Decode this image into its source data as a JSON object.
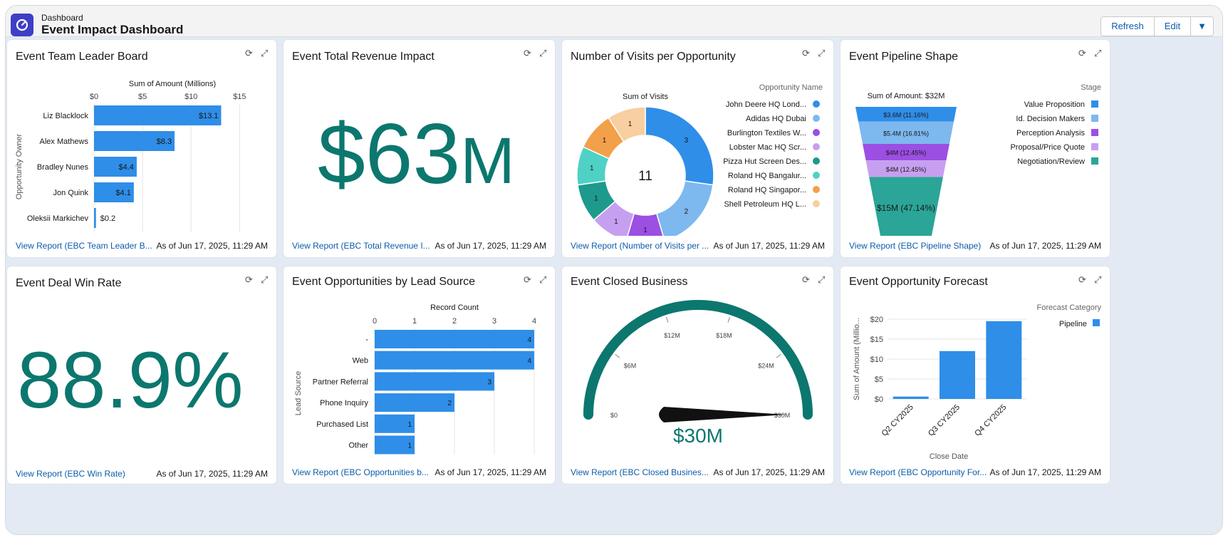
{
  "header": {
    "subtitle": "Dashboard",
    "title": "Event Impact Dashboard",
    "buttons": {
      "refresh": "Refresh",
      "edit": "Edit"
    }
  },
  "colors": {
    "bar_blue": "#2f8ee8",
    "metric_teal": "#0c776e",
    "link_blue": "#0b5cab"
  },
  "cards": {
    "leader": {
      "title": "Event Team Leader Board",
      "link": "View Report (EBC Team Leader B...",
      "asof": "As of Jun 17, 2025, 11:29 AM"
    },
    "revenue": {
      "title": "Event Total Revenue Impact",
      "metric_value": "$63",
      "metric_unit": "M",
      "link": "View Report (EBC Total Revenue I...",
      "asof": "As of Jun 17, 2025, 11:29 AM"
    },
    "visits": {
      "title": "Number of Visits per Opportunity",
      "link": "View Report (Number of Visits per ...",
      "asof": "As of Jun 17, 2025, 11:29 AM"
    },
    "pipeline": {
      "title": "Event Pipeline Shape",
      "link": "View Report (EBC Pipeline Shape)",
      "asof": "As of Jun 17, 2025, 11:29 AM"
    },
    "winrate": {
      "title": "Event Deal Win Rate",
      "metric_value": "88.9%",
      "link": "View Report (EBC Win Rate)",
      "asof": "As of Jun 17, 2025, 11:29 AM"
    },
    "leadsource": {
      "title": "Event Opportunities by Lead Source",
      "link": "View Report (EBC Opportunities b...",
      "asof": "As of Jun 17, 2025, 11:29 AM"
    },
    "closed": {
      "title": "Event Closed Business",
      "link": "View Report (EBC Closed Busines...",
      "asof": "As of Jun 17, 2025, 11:29 AM"
    },
    "forecast": {
      "title": "Event Opportunity Forecast",
      "link": "View Report (EBC Opportunity For...",
      "asof": "As of Jun 17, 2025, 11:29 AM"
    }
  },
  "chart_data": [
    {
      "id": "leader",
      "type": "bar",
      "orientation": "horizontal",
      "title": "Sum of Amount (Millions)",
      "xlabel": "Sum of Amount (Millions)",
      "ylabel": "Opportunity Owner",
      "xlim": [
        0,
        16
      ],
      "ticks": [
        "$0",
        "$5",
        "$10",
        "$15"
      ],
      "tick_values": [
        0,
        5,
        10,
        15
      ],
      "categories": [
        "Liz Blacklock",
        "Alex Mathews",
        "Bradley Nunes",
        "Jon Quink",
        "Oleksii Markichev"
      ],
      "values": [
        13.1,
        8.3,
        4.4,
        4.1,
        0.2
      ],
      "data_labels": [
        "$13.1",
        "$8.3",
        "$4.4",
        "$4.1",
        "$0.2"
      ],
      "grid": true
    },
    {
      "id": "visits",
      "type": "pie",
      "donut": true,
      "title": "Sum of Visits",
      "center_label": "11",
      "legend_title": "Opportunity Name",
      "legend_position": "right",
      "slices": [
        {
          "label": "John Deere HQ Lond...",
          "value": 3,
          "color": "#2f8ee8"
        },
        {
          "label": "Adidas HQ Dubai",
          "value": 2,
          "color": "#7db8ef"
        },
        {
          "label": "Burlington Textiles W...",
          "value": 1,
          "color": "#9b4fe3"
        },
        {
          "label": "Lobster Mac HQ Scr...",
          "value": 1,
          "color": "#c79ff0"
        },
        {
          "label": "Pizza Hut Screen Des...",
          "value": 1,
          "color": "#1d9a8c"
        },
        {
          "label": "Roland HQ Bangalur...",
          "value": 1,
          "color": "#4fd1c5"
        },
        {
          "label": "Roland HQ Singapor...",
          "value": 1,
          "color": "#f2a049"
        },
        {
          "label": "Shell Petroleum HQ L...",
          "value": 1,
          "color": "#f7cfa0"
        }
      ]
    },
    {
      "id": "pipeline",
      "type": "funnel",
      "title": "Sum of Amount: $32M",
      "legend_title": "Stage",
      "legend_position": "right",
      "stages": [
        {
          "label": "Value Proposition",
          "value_label": "$3.6M (11.16%)",
          "percent": 11.16,
          "color": "#2f8ee8"
        },
        {
          "label": "Id. Decision Makers",
          "value_label": "$5.4M (16.81%)",
          "percent": 16.81,
          "color": "#7db8ef"
        },
        {
          "label": "Perception Analysis",
          "value_label": "$4M (12.45%)",
          "percent": 12.45,
          "color": "#9b4fe3"
        },
        {
          "label": "Proposal/Price Quote",
          "value_label": "$4M (12.45%)",
          "percent": 12.45,
          "color": "#c79ff0"
        },
        {
          "label": "Negotiation/Review",
          "value_label": "$15M (47.14%)",
          "percent": 47.14,
          "color": "#2ba597"
        }
      ]
    },
    {
      "id": "leadsource",
      "type": "bar",
      "orientation": "horizontal",
      "title": "Record Count",
      "xlabel": "Record Count",
      "ylabel": "Lead Source",
      "xlim": [
        0,
        4
      ],
      "ticks": [
        "0",
        "1",
        "2",
        "3",
        "4"
      ],
      "tick_values": [
        0,
        1,
        2,
        3,
        4
      ],
      "categories": [
        "-",
        "Web",
        "Partner Referral",
        "Phone Inquiry",
        "Purchased List",
        "Other"
      ],
      "values": [
        4,
        4,
        3,
        2,
        1,
        1
      ],
      "grid": true
    },
    {
      "id": "closed",
      "type": "gauge",
      "min": 0,
      "max": 30,
      "value": 30,
      "value_label": "$30M",
      "tick_labels": [
        "$0",
        "$6M",
        "$12M",
        "$18M",
        "$24M",
        "$30M"
      ],
      "tick_values": [
        0,
        6,
        12,
        18,
        24,
        30
      ],
      "color": "#0c776e"
    },
    {
      "id": "forecast",
      "type": "bar",
      "orientation": "vertical",
      "xlabel": "Close Date",
      "ylabel": "Sum of Amount (Millio...",
      "ylim": [
        0,
        20
      ],
      "ticks": [
        "$0",
        "$5",
        "$10",
        "$15",
        "$20"
      ],
      "tick_values": [
        0,
        5,
        10,
        15,
        20
      ],
      "categories": [
        "Q2 CY2025",
        "Q3 CY2025",
        "Q4 CY2025"
      ],
      "series": [
        {
          "name": "Pipeline",
          "values": [
            0.6,
            12,
            19.5
          ]
        }
      ],
      "legend_title": "Forecast Category",
      "legend_position": "right",
      "grid": true
    }
  ]
}
